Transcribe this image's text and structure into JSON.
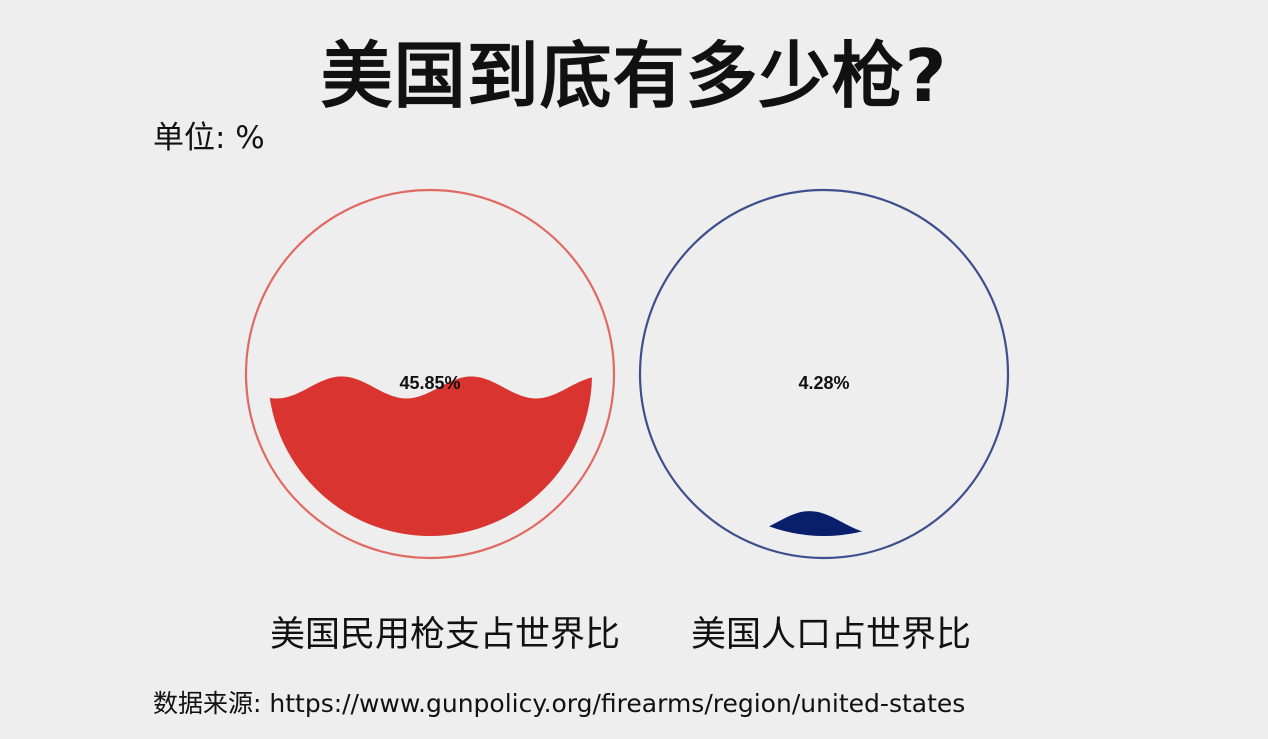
{
  "header": {
    "title": "美国到底有多少枪?",
    "unit": "单位: %"
  },
  "chart_data": {
    "type": "liquidfill",
    "unit": "%",
    "items": [
      {
        "category": "美国民用枪支占世界比",
        "value": 45.85,
        "display": "45.85%",
        "color": "#d9342f",
        "outline_color": "#e06a63"
      },
      {
        "category": "美国人口占世界比",
        "value": 4.28,
        "display": "4.28%",
        "color": "#0a1f6b",
        "outline_color": "#3d4f8d"
      }
    ]
  },
  "footer": {
    "source": "数据来源: https://www.gunpolicy.org/firearms/region/united-states"
  }
}
